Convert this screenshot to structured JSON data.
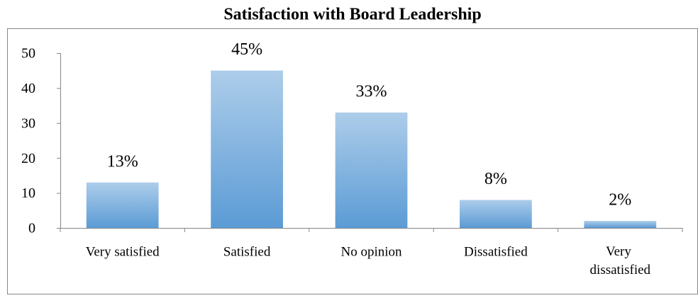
{
  "chart_data": {
    "type": "bar",
    "title": "Satisfaction with Board Leadership",
    "categories": [
      "Very satisfied",
      "Satisfied",
      "No opinion",
      "Dissatisfied",
      "Very dissatisfied"
    ],
    "values": [
      13,
      45,
      33,
      8,
      2
    ],
    "value_labels": [
      "13%",
      "45%",
      "33%",
      "8%",
      "2%"
    ],
    "color": "#5b9bd5",
    "ylim": [
      0,
      50
    ],
    "yticks": [
      0,
      10,
      20,
      30,
      40,
      50
    ],
    "grid": false
  }
}
